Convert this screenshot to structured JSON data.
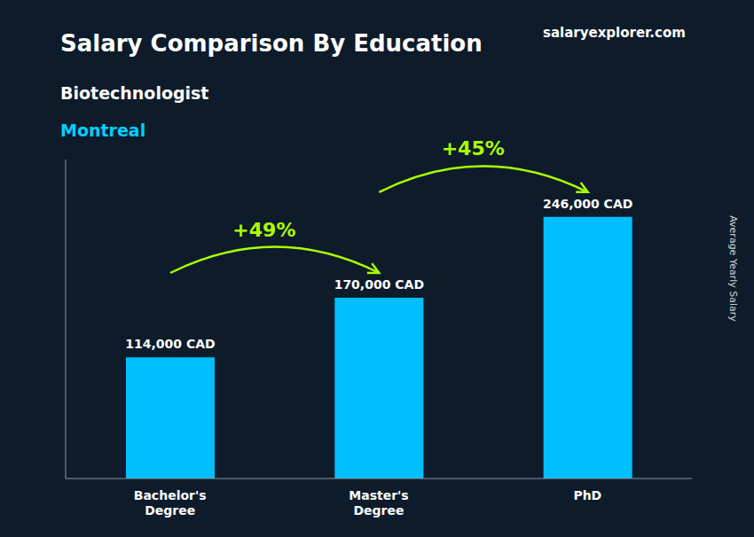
{
  "chart_data": {
    "type": "bar",
    "title": "Salary Comparison By Education",
    "subtitle": [
      {
        "text": "Biotechnologist",
        "color": "#FFFFFF"
      },
      {
        "text": "Montreal",
        "color": "#00CFFF"
      }
    ],
    "ylabel": "Average Yearly Salary",
    "categories": [
      "Bachelor's\nDegree",
      "Master's\nDegree",
      "PhD"
    ],
    "values": [
      114000,
      170000,
      246000
    ],
    "value_labels": [
      "114,000 CAD",
      "170,000 CAD",
      "246,000 CAD"
    ],
    "data_labels": true,
    "color": "#00BFFF",
    "ylim": [
      0,
      300000
    ],
    "tick_labels": "x",
    "grid": false,
    "annotations": [
      {
        "text": "+49%",
        "color": "#AAFF00",
        "arrow": true
      },
      {
        "text": "+45%",
        "color": "#AAFF00",
        "arrow": true
      },
      {
        "text": "salaryexplorer.com",
        "arrow": false
      }
    ]
  }
}
